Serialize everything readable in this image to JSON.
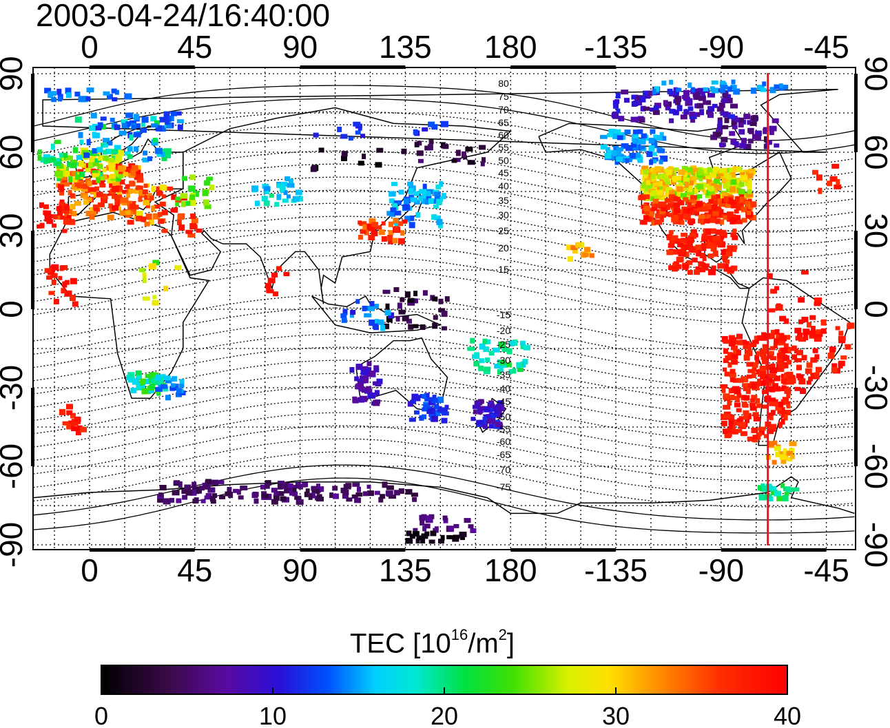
{
  "title": "2003-04-24/16:40:00",
  "map": {
    "projection": "cylindrical",
    "lon_range": [
      -24,
      327
    ],
    "lat_range": [
      -92,
      92
    ],
    "top_lon_ticks": [
      "0",
      "45",
      "90",
      "135",
      "180",
      "-135",
      "-90",
      "-45"
    ],
    "bottom_lon_ticks": [
      "0",
      "45",
      "90",
      "135",
      "180",
      "-135",
      "-90",
      "-45"
    ],
    "left_lat_ticks": [
      "90",
      "60",
      "30",
      "0",
      "-30",
      "-60",
      "-90"
    ],
    "right_lat_ticks": [
      "90",
      "60",
      "30",
      "0",
      "-30",
      "-60",
      "-90"
    ],
    "grid": "dotted, every 15 degrees",
    "magnetic_latitude_labels_north": [
      "80",
      "75",
      "70",
      "65",
      "60",
      "55",
      "50",
      "45",
      "40",
      "35",
      "30",
      "25",
      "20",
      "15"
    ],
    "magnetic_latitude_labels_south": [
      "-15",
      "-20",
      "-25",
      "-30",
      "-35",
      "-40",
      "-45",
      "-50",
      "-55",
      "-60",
      "-65",
      "-70",
      "-75"
    ],
    "marker_longitude": -70,
    "marker_color": "#e8141e"
  },
  "colorbar": {
    "title_main": "TEC  [10",
    "title_exp1": "16",
    "title_mid": "/m",
    "title_exp2": "2",
    "title_end": "]",
    "ticks": [
      "0",
      "10",
      "20",
      "30",
      "40"
    ],
    "range": [
      0,
      40
    ]
  }
}
